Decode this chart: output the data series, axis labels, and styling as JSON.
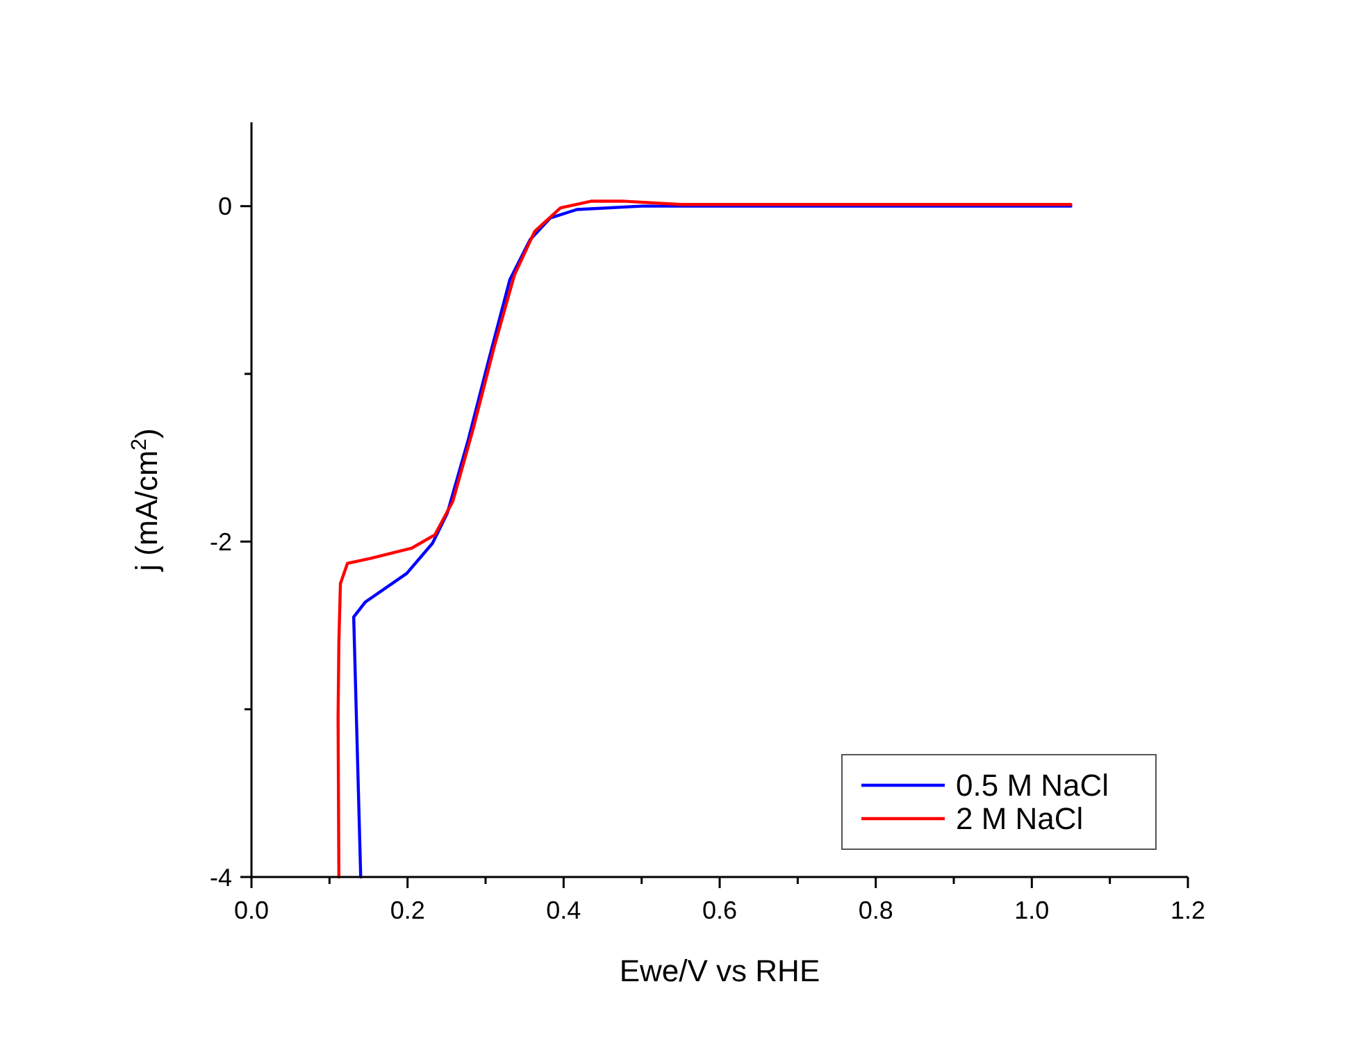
{
  "chart_data": {
    "type": "line",
    "xlabel": "Ewe/V vs RHE",
    "ylabel": "j (mA/cm$^{2}$)",
    "xlim": [
      0,
      1.2
    ],
    "ylim": [
      -4,
      0.5
    ],
    "xticks": [
      {
        "value": 0,
        "label": "0.0"
      },
      {
        "value": 0.1,
        "label": null
      },
      {
        "value": 0.2,
        "label": "0.2"
      },
      {
        "value": 0.3,
        "label": null
      },
      {
        "value": 0.4,
        "label": "0.4"
      },
      {
        "value": 0.5,
        "label": null
      },
      {
        "value": 0.6,
        "label": "0.6"
      },
      {
        "value": 0.7,
        "label": null
      },
      {
        "value": 0.8,
        "label": "0.8"
      },
      {
        "value": 0.9,
        "label": null
      },
      {
        "value": 1.0,
        "label": "1.0"
      },
      {
        "value": 1.1,
        "label": null
      },
      {
        "value": 1.2,
        "label": "1.2"
      }
    ],
    "yticks": [
      -4,
      {
        "value": -3,
        "label": null
      },
      -2,
      {
        "value": -1,
        "label": null
      },
      0
    ],
    "legend": "bottom right",
    "grid": false,
    "marker": "none",
    "line_style": "solid",
    "series": [
      {
        "name": "0.5 M NaCl",
        "color": "#0000ff",
        "x": [
          0.14,
          0.131,
          0.146,
          0.199,
          0.232,
          0.251,
          0.278,
          0.305,
          0.331,
          0.357,
          0.383,
          0.417,
          0.5,
          0.7,
          0.9,
          1.05
        ],
        "values": [
          -4,
          -2.45,
          -2.36,
          -2.19,
          -2.01,
          -1.83,
          -1.39,
          -0.9,
          -0.44,
          -0.2,
          -0.07,
          -0.02,
          0,
          0,
          0,
          0
        ]
      },
      {
        "name": "2 M NaCl",
        "color": "#ff0000",
        "x": [
          0.112,
          0.111,
          0.112,
          0.114,
          0.123,
          0.153,
          0.205,
          0.235,
          0.258,
          0.284,
          0.311,
          0.337,
          0.363,
          0.396,
          0.436,
          0.475,
          0.55,
          0.8,
          1.05
        ],
        "values": [
          -4,
          -3.05,
          -2.6,
          -2.25,
          -2.13,
          -2.1,
          -2.04,
          -1.96,
          -1.76,
          -1.33,
          -0.84,
          -0.41,
          -0.15,
          -0.01,
          0.03,
          0.03,
          0.01,
          0.01,
          0.01
        ]
      }
    ]
  }
}
